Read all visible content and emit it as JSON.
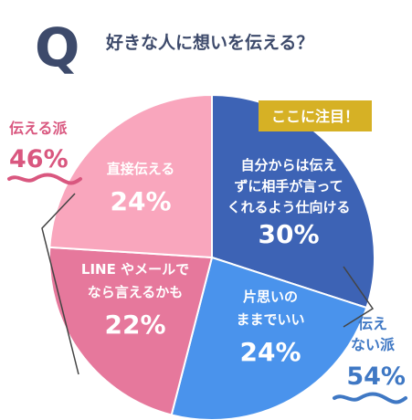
{
  "header": {
    "q_letter": "Q",
    "question": "好きな人に想いを伝える？"
  },
  "callout": {
    "text": "ここに注目！"
  },
  "groups": {
    "left": {
      "label": "伝える派",
      "value": "46%"
    },
    "right": {
      "label_line1": "伝え",
      "label_line2": "ない派",
      "value": "54%"
    }
  },
  "colors": {
    "background": "#ffffff",
    "heading": "#3d4a6b",
    "q_letter": "#3d4a6b",
    "pink_text": "#d9577f",
    "blue_text": "#3f78c4",
    "callout_bg": "#d6b125",
    "outline": "#444444",
    "slice_dark_blue": "#3d63b5",
    "slice_light_blue": "#4a93ec",
    "slice_dark_pink": "#e6789c",
    "slice_light_pink": "#f9a6bd"
  },
  "chart_data": {
    "type": "pie",
    "title": "好きな人に想いを伝える？",
    "unit": "%",
    "slices": [
      {
        "label_lines": [
          "自分からは伝え",
          "ずに相手が言って",
          "くれるよう仕向ける"
        ],
        "value": 30,
        "value_label": "30%",
        "color": "#3d63b5",
        "group": "伝えない派"
      },
      {
        "label_lines": [
          "片思いの",
          "ままでいい"
        ],
        "value": 24,
        "value_label": "24%",
        "color": "#4a93ec",
        "group": "伝えない派"
      },
      {
        "label_lines": [
          "LINE やメールで",
          "なら言えるかも"
        ],
        "value": 22,
        "value_label": "22%",
        "color": "#e6789c",
        "group": "伝える派"
      },
      {
        "label_lines": [
          "直接伝える"
        ],
        "value": 24,
        "value_label": "24%",
        "color": "#f9a6bd",
        "group": "伝える派"
      }
    ]
  }
}
